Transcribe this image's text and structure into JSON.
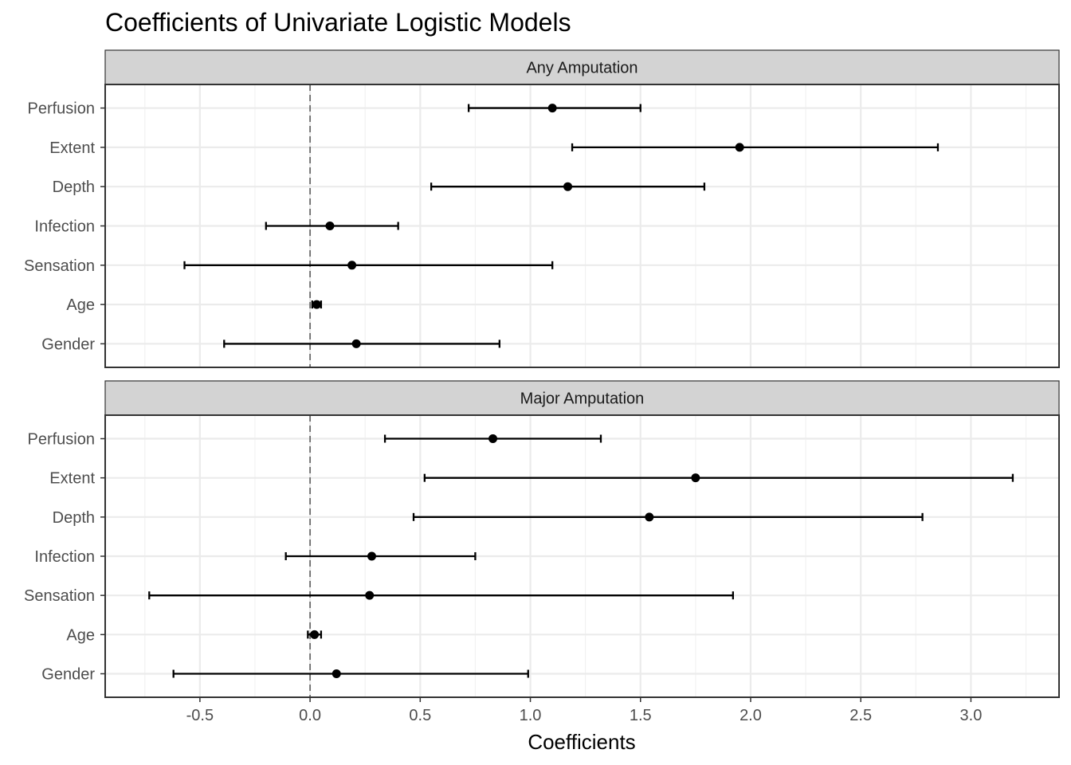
{
  "chart_data": {
    "type": "errorbar",
    "title": "Coefficients of Univariate Logistic Models",
    "xlabel": "Coefficients",
    "ylabel": "",
    "xlim": [
      -0.93,
      3.4
    ],
    "x_ticks": [
      -0.5,
      0.0,
      0.5,
      1.0,
      1.5,
      2.0,
      2.5,
      3.0
    ],
    "x_tick_labels": [
      "-0.5",
      "0.0",
      "0.5",
      "1.0",
      "1.5",
      "2.0",
      "2.5",
      "3.0"
    ],
    "reference_line": 0,
    "grid": true,
    "categories": [
      "Perfusion",
      "Extent",
      "Depth",
      "Infection",
      "Sensation",
      "Age",
      "Gender"
    ],
    "panels": [
      {
        "name": "Any Amputation",
        "estimates": [
          1.1,
          1.95,
          1.17,
          0.09,
          0.19,
          0.03,
          0.21
        ],
        "lower": [
          0.72,
          1.19,
          0.55,
          -0.2,
          -0.57,
          0.01,
          -0.39
        ],
        "upper": [
          1.5,
          2.85,
          1.79,
          0.4,
          1.1,
          0.05,
          0.86
        ]
      },
      {
        "name": "Major Amputation",
        "estimates": [
          0.83,
          1.75,
          1.54,
          0.28,
          0.27,
          0.02,
          0.12
        ],
        "lower": [
          0.34,
          0.52,
          0.47,
          -0.11,
          -0.73,
          -0.01,
          -0.62
        ],
        "upper": [
          1.32,
          3.19,
          2.78,
          0.75,
          1.92,
          0.05,
          0.99
        ]
      }
    ]
  },
  "colors": {
    "strip_fill": "#d3d3d3",
    "grid_major": "#ebebeb",
    "grid_minor": "#f2f2f2",
    "panel_border": "#333333",
    "marks": "#000000",
    "reference_line": "#555555"
  }
}
